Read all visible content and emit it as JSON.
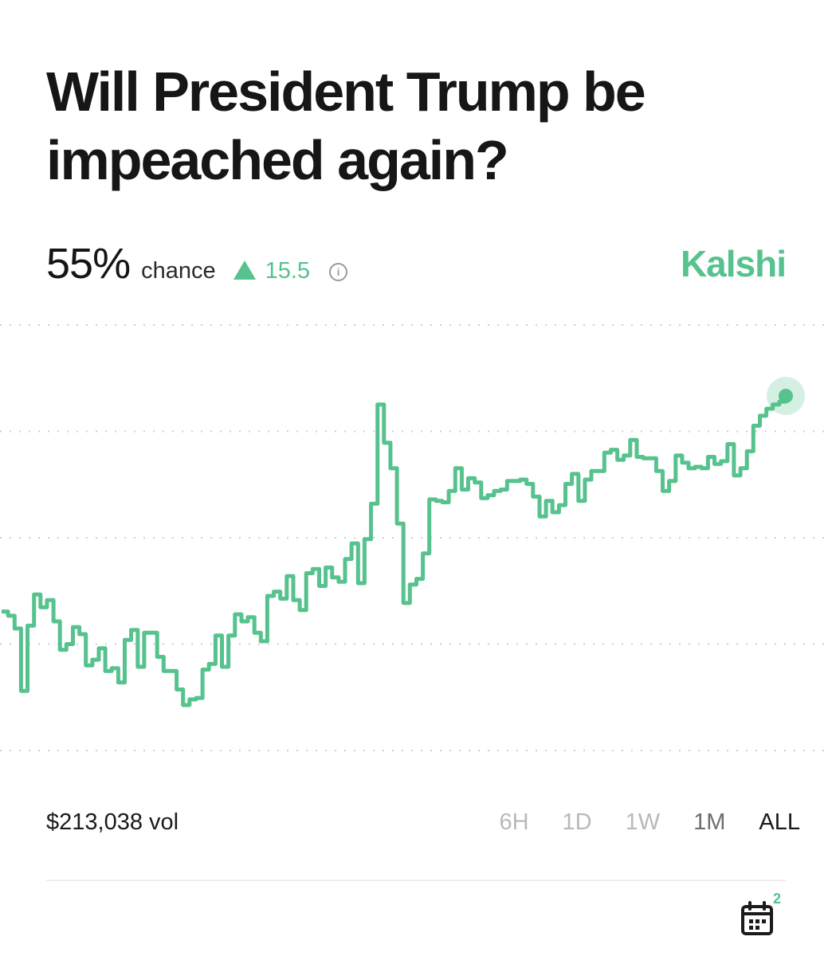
{
  "question": {
    "line1": "Will President Trump be",
    "line2": "impeached again?"
  },
  "stats": {
    "probability": "55%",
    "chance_label": "chance",
    "change": "15.5",
    "info_icon": "info-icon"
  },
  "brand": "Kalshi",
  "colors": {
    "accent": "#56c28d",
    "text": "#1b1b1b",
    "muted": "#b9b9b9"
  },
  "footer": {
    "volume": "$213,038 vol",
    "ranges": [
      "6H",
      "1D",
      "1W",
      "1M",
      "ALL"
    ],
    "selected_range": "ALL",
    "calendar_badge": "2"
  },
  "chart_data": {
    "type": "line",
    "title": "",
    "xlabel": "",
    "ylabel": "",
    "ylim": [
      30,
      60
    ],
    "gridlines": 5,
    "current_value": 55,
    "series": [
      {
        "name": "chance",
        "values": [
          39.8,
          39.5,
          38.6,
          34.2,
          38.8,
          41.0,
          40.1,
          40.6,
          39.1,
          37.1,
          37.5,
          38.7,
          38.2,
          36.0,
          36.4,
          37.2,
          35.6,
          35.8,
          34.8,
          37.8,
          38.5,
          35.9,
          38.3,
          38.3,
          36.6,
          35.6,
          35.6,
          34.3,
          33.2,
          33.6,
          33.7,
          35.7,
          36.1,
          38.1,
          35.9,
          38.1,
          39.6,
          39.1,
          39.4,
          38.3,
          37.7,
          40.9,
          41.2,
          40.7,
          42.3,
          40.6,
          39.9,
          42.5,
          42.8,
          41.6,
          42.9,
          42.2,
          41.9,
          43.5,
          44.6,
          41.8,
          44.9,
          47.4,
          54.4,
          51.7,
          49.9,
          46.0,
          40.4,
          41.7,
          42.1,
          43.9,
          47.7,
          47.6,
          47.5,
          48.3,
          49.9,
          48.4,
          49.2,
          48.9,
          47.8,
          48.0,
          48.3,
          48.4,
          49.0,
          49.0,
          49.1,
          48.8,
          47.9,
          46.5,
          47.6,
          46.8,
          47.3,
          48.8,
          49.5,
          47.6,
          49.1,
          49.7,
          49.7,
          51.0,
          51.2,
          50.5,
          50.8,
          51.9,
          50.7,
          50.6,
          50.6,
          49.7,
          48.3,
          49.0,
          50.8,
          50.3,
          49.9,
          50.0,
          49.9,
          50.7,
          50.2,
          50.4,
          51.6,
          49.4,
          49.9,
          51.1,
          52.9,
          53.6,
          54.1,
          54.4,
          54.6,
          55.0
        ]
      }
    ]
  }
}
